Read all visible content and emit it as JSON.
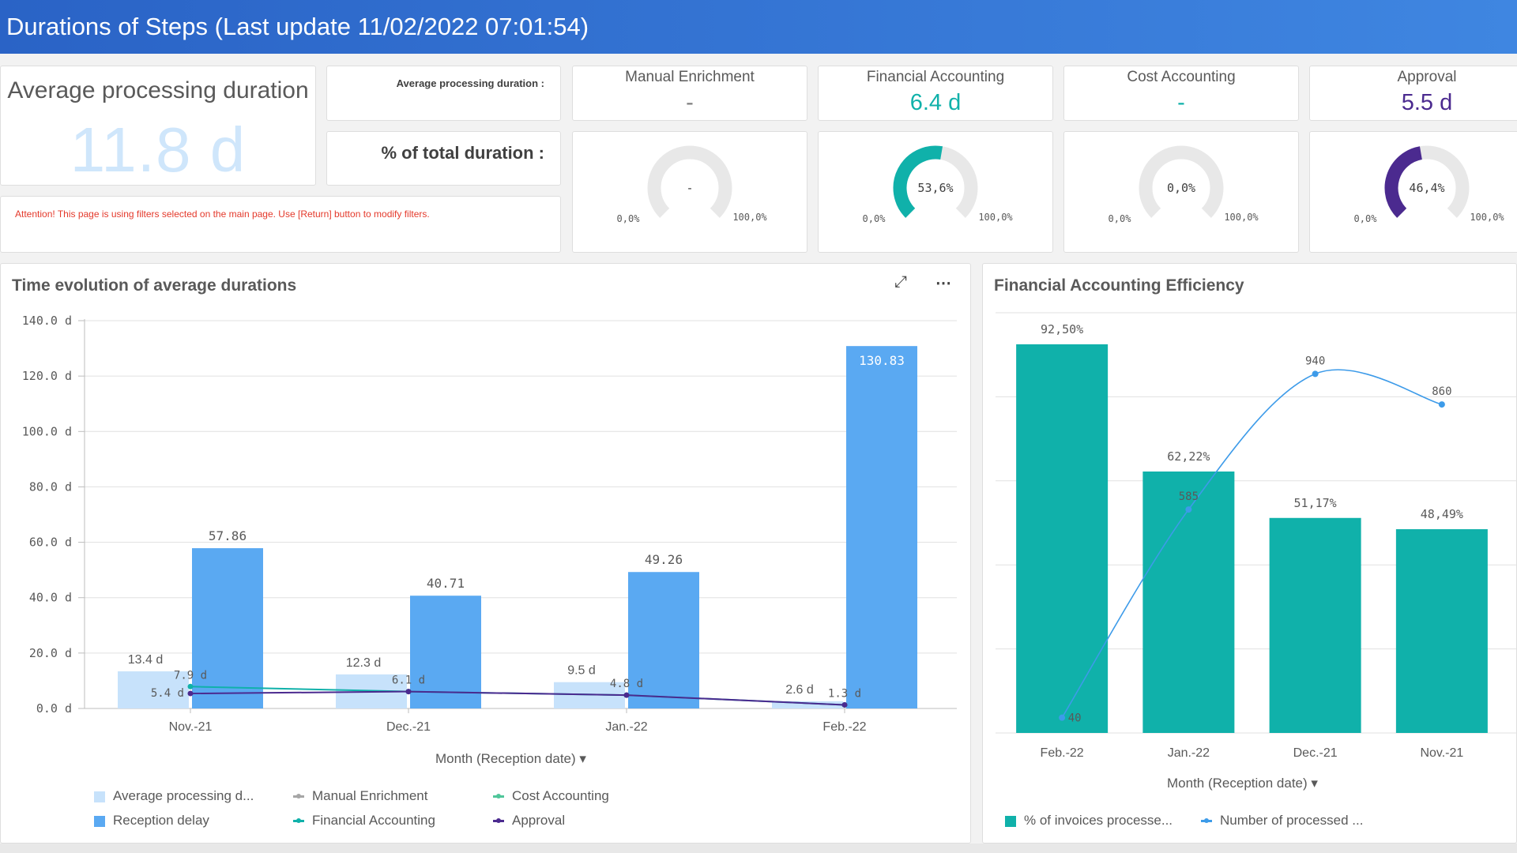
{
  "header": {
    "title": "Durations of Steps (Last update 11/02/2022 07:01:54)"
  },
  "kpi": {
    "label": "Average processing duration",
    "value": "11.8 d",
    "avg_label": "Average processing duration :",
    "pct_label": "% of total duration :",
    "attention": "Attention! This page is using filters selected on the main page. Use [Return] button to modify filters."
  },
  "steps": [
    {
      "title": "Manual Enrichment",
      "value": "-",
      "color": "#7f7f7f",
      "gauge_pct": 0,
      "gauge_label": "-",
      "gauge_min": "0,0%",
      "gauge_max": "100,0%",
      "gauge_color": "#e8e8e8"
    },
    {
      "title": "Financial Accounting",
      "value": "6.4 d",
      "color": "#10b1aa",
      "gauge_pct": 53.6,
      "gauge_label": "53,6%",
      "gauge_min": "0,0%",
      "gauge_max": "100,0%",
      "gauge_color": "#10b1aa"
    },
    {
      "title": "Cost Accounting",
      "value": "-",
      "color": "#10b1aa",
      "gauge_pct": 0,
      "gauge_label": "0,0%",
      "gauge_min": "0,0%",
      "gauge_max": "100,0%",
      "gauge_color": "#e8e8e8"
    },
    {
      "title": "Approval",
      "value": "5.5 d",
      "color": "#4b2a8f",
      "gauge_pct": 46.4,
      "gauge_label": "46,4%",
      "gauge_min": "0,0%",
      "gauge_max": "100,0%",
      "gauge_color": "#4b2a8f"
    }
  ],
  "left_panel": {
    "title": "Time evolution of average durations",
    "expand_icon": "expand-icon",
    "more_icon": "more-icon",
    "axis_title": "Month (Reception date)",
    "legend": [
      {
        "label": "Average processing d...",
        "type": "bar",
        "color": "#c7e2fb"
      },
      {
        "label": "Manual Enrichment",
        "type": "line",
        "color": "#a6a6a6"
      },
      {
        "label": "Cost Accounting",
        "type": "line",
        "color": "#4fc69a"
      },
      {
        "label": "Reception delay",
        "type": "bar",
        "color": "#5aa9f2"
      },
      {
        "label": "Financial Accounting",
        "type": "line",
        "color": "#10b1aa"
      },
      {
        "label": "Approval",
        "type": "line",
        "color": "#4b2a8f"
      }
    ]
  },
  "right_panel": {
    "title": "Financial Accounting Efficiency",
    "axis_title": "Month (Reception date)",
    "legend": [
      {
        "label": "% of invoices processe...",
        "type": "bar",
        "color": "#10b1aa"
      },
      {
        "label": "Number of processed ...",
        "type": "line",
        "color": "#3d9be9"
      }
    ]
  },
  "chart_data": [
    {
      "type": "bar",
      "title": "Time evolution of average durations",
      "xlabel": "Month (Reception date)",
      "ylabel": "",
      "categories": [
        "Nov.-21",
        "Dec.-21",
        "Jan.-22",
        "Feb.-22"
      ],
      "ylim": [
        0,
        140
      ],
      "yticks": [
        "0.0 d",
        "20.0 d",
        "40.0 d",
        "60.0 d",
        "80.0 d",
        "100.0 d",
        "120.0 d",
        "140.0 d"
      ],
      "series": [
        {
          "name": "Average processing d...",
          "kind": "bar",
          "color": "#c7e2fb",
          "values": [
            13.4,
            12.3,
            9.5,
            2.6
          ],
          "labels": [
            "13.4 d",
            "12.3 d",
            "9.5 d",
            "2.6 d"
          ]
        },
        {
          "name": "Reception delay",
          "kind": "bar",
          "color": "#5aa9f2",
          "values": [
            57.86,
            40.71,
            49.26,
            130.83
          ],
          "labels": [
            "57.86",
            "40.71",
            "49.26",
            "130.83"
          ]
        },
        {
          "name": "Financial Accounting",
          "kind": "line",
          "color": "#10b1aa",
          "values": [
            7.9,
            6.1,
            4.8,
            1.3
          ],
          "labels": [
            "7.9 d",
            "6.1 d",
            "4.8 d",
            "1.3 d"
          ]
        },
        {
          "name": "Approval",
          "kind": "line",
          "color": "#4b2a8f",
          "values": [
            5.4,
            6.1,
            4.8,
            1.3
          ],
          "labels": [
            "5.4 d",
            "",
            "",
            ""
          ]
        }
      ],
      "grid": true,
      "legend_position": "bottom"
    },
    {
      "type": "bar",
      "title": "Financial Accounting Efficiency",
      "xlabel": "Month (Reception date)",
      "categories": [
        "Feb.-22",
        "Jan.-22",
        "Dec.-21",
        "Nov.-21"
      ],
      "bar_ylim": [
        0,
        100
      ],
      "line_ylim": [
        0,
        1100
      ],
      "series": [
        {
          "name": "% of invoices processe...",
          "kind": "bar",
          "color": "#10b1aa",
          "values": [
            92.5,
            62.22,
            51.17,
            48.49
          ],
          "labels": [
            "92,50%",
            "62,22%",
            "51,17%",
            "48,49%"
          ]
        },
        {
          "name": "Number of processed ...",
          "kind": "line",
          "color": "#3d9be9",
          "values": [
            40,
            585,
            940,
            860
          ],
          "labels": [
            "40",
            "585",
            "940",
            "860"
          ]
        }
      ],
      "grid": true,
      "legend_position": "bottom"
    }
  ]
}
